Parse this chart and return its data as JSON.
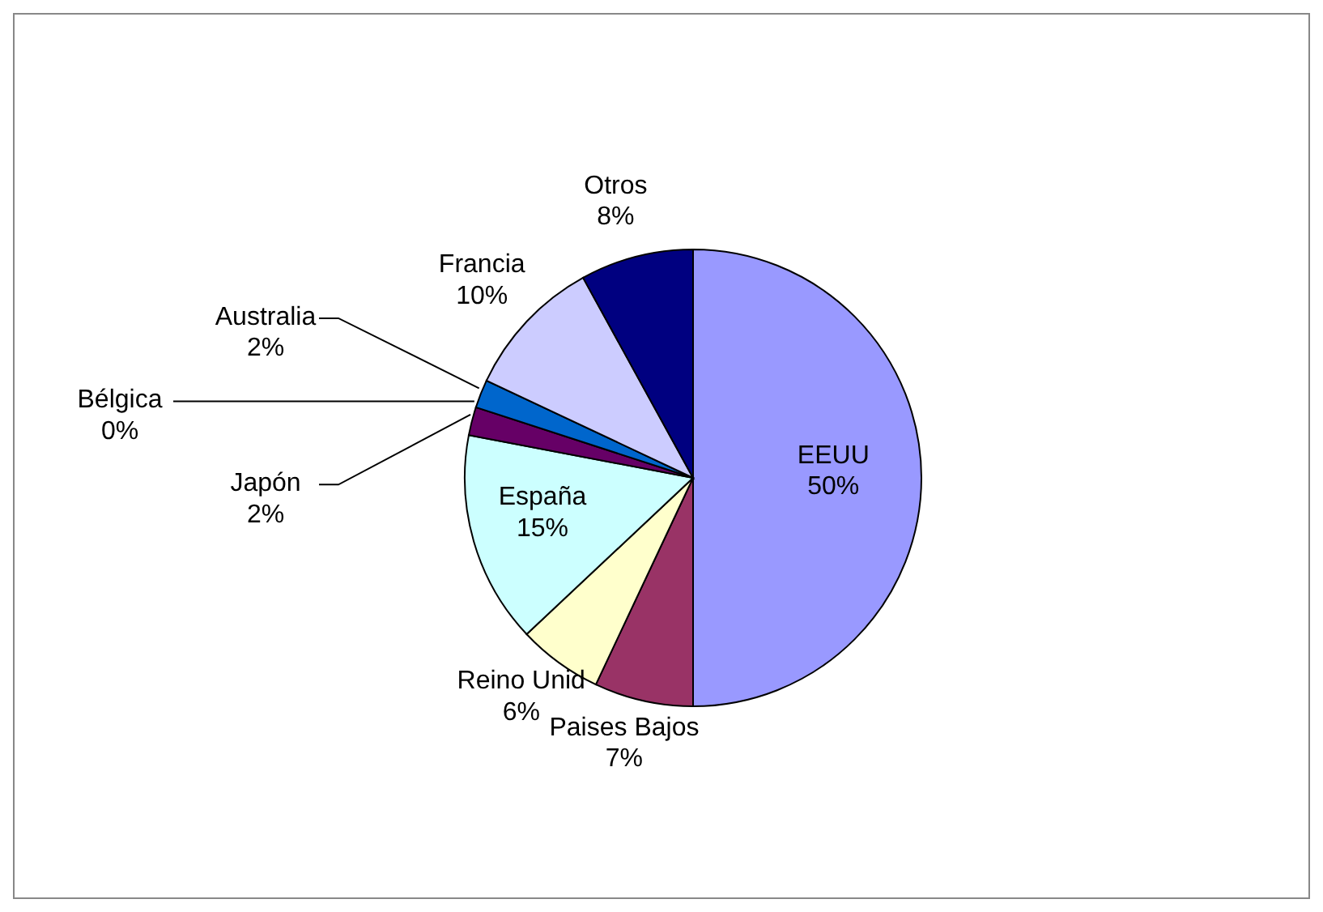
{
  "chart_data": {
    "type": "pie",
    "categories": [
      "EEUU",
      "Paises Bajos",
      "Reino Unid",
      "España",
      "Japón",
      "Bélgica",
      "Australia",
      "Francia",
      "Otros"
    ],
    "values": [
      50,
      7,
      6,
      15,
      2,
      0,
      2,
      10,
      8
    ],
    "value_labels": [
      "50%",
      "7%",
      "6%",
      "15%",
      "2%",
      "0%",
      "2%",
      "10%",
      "8%"
    ],
    "colors": [
      "#9999ff",
      "#993366",
      "#ffffcc",
      "#ccffff",
      "#660066",
      "#ff8080",
      "#0066cc",
      "#ccccff",
      "#000080"
    ],
    "legend": false
  }
}
